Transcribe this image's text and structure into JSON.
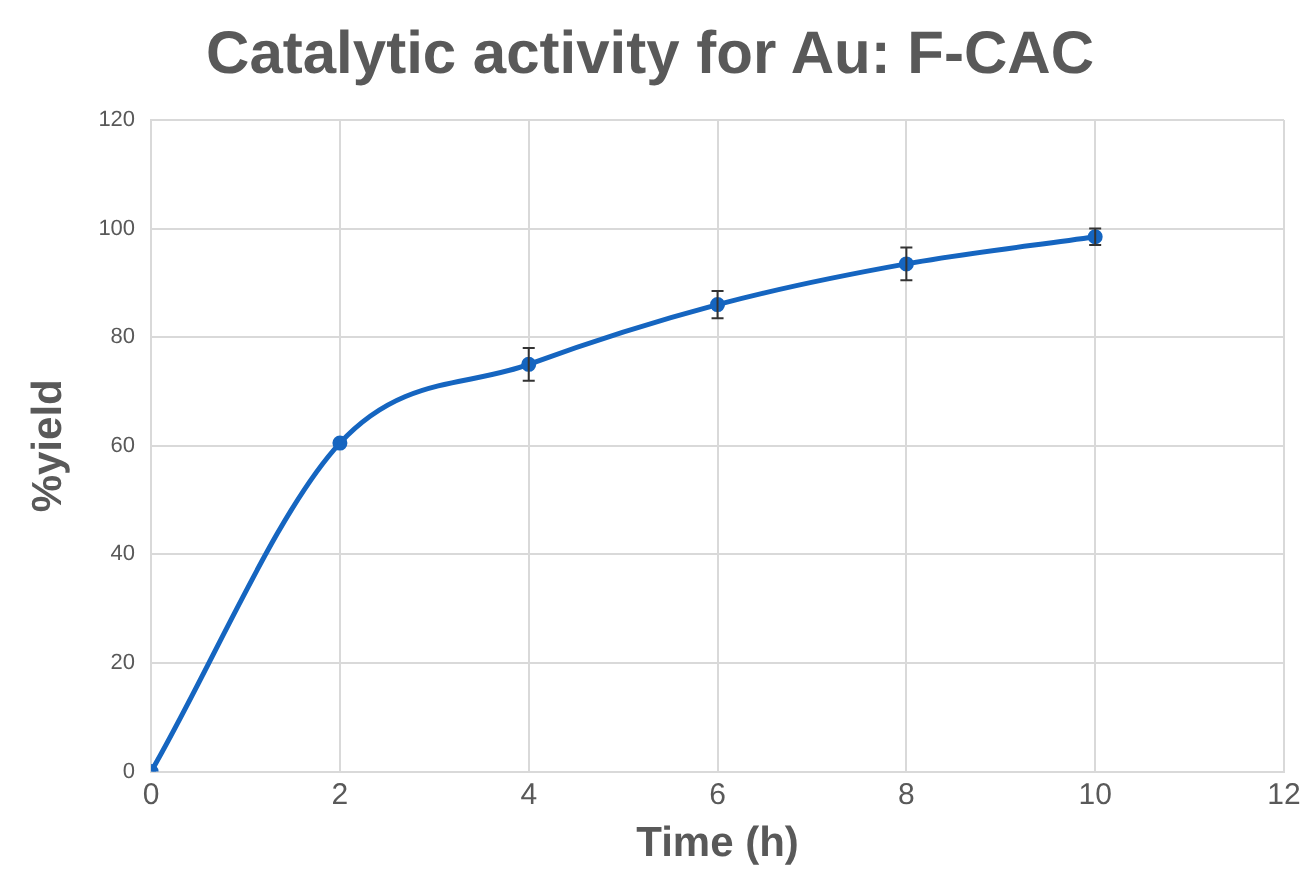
{
  "chart_data": {
    "type": "line",
    "title": "Catalytic activity for Au: F-CAC",
    "xlabel": "Time (h)",
    "ylabel": "%yield",
    "x": [
      0,
      2,
      4,
      6,
      8,
      10
    ],
    "series": [
      {
        "color": "#1565c0",
        "values": [
          0,
          60.5,
          75,
          86,
          93.5,
          98.5
        ],
        "errors": [
          null,
          null,
          3,
          2.5,
          3,
          1.5
        ]
      }
    ],
    "xlim": [
      0,
      12
    ],
    "xticks": [
      0,
      2,
      4,
      6,
      8,
      10,
      12
    ],
    "ylim": [
      0,
      120
    ],
    "yticks": [
      0,
      20,
      40,
      60,
      80,
      100,
      120
    ],
    "grid": true,
    "legend": false,
    "marker": "circle",
    "line_style": "solid"
  }
}
